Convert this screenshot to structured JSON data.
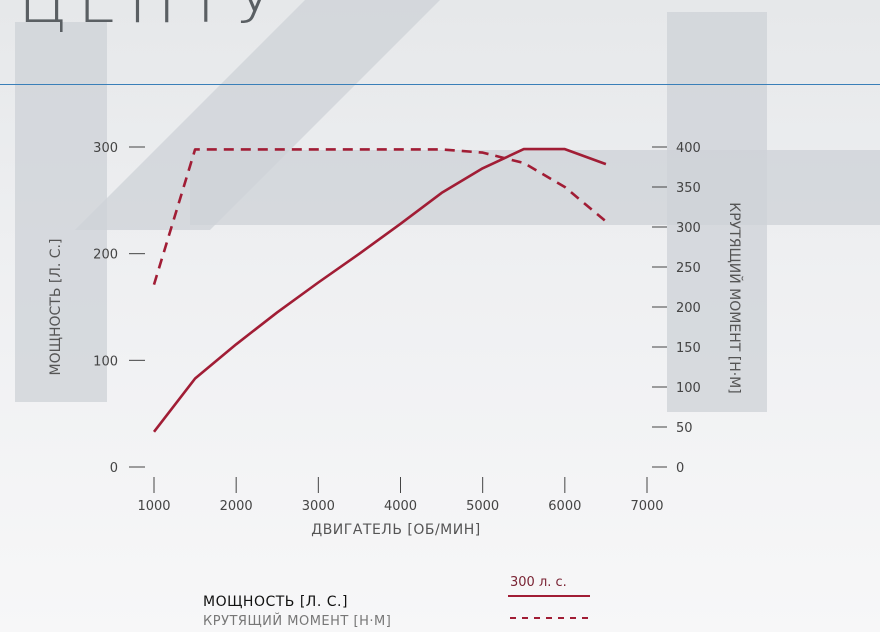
{
  "header_fragment": "ЦЕНТУ",
  "legend": {
    "power_label": "МОЩНОСТЬ [Л. С.]",
    "torque_label": "КРУТЯЩИЙ МОМЕНТ [Н·М]",
    "power_note": "300 л. с."
  },
  "colors": {
    "series": "#a11d35",
    "rule": "#3a7fb8",
    "watermark": "#cdd2d7"
  },
  "chart_data": {
    "type": "line",
    "xlabel": "ДВИГАТЕЛЬ [ОБ/МИН]",
    "ylabel": "МОЩНОСТЬ [Л. С.]",
    "y2label": "КРУТЯЩИЙ МОМЕНТ [Н·М]",
    "xlim": [
      1000,
      7000
    ],
    "ylim": [
      0,
      300
    ],
    "y2lim": [
      0,
      400
    ],
    "xticks": [
      1000,
      2000,
      3000,
      4000,
      5000,
      6000,
      7000
    ],
    "yticks": [
      0,
      100,
      200,
      300
    ],
    "y2ticks": [
      0,
      50,
      100,
      150,
      200,
      250,
      300,
      350,
      400
    ],
    "series": [
      {
        "name": "МОЩНОСТЬ [Л. С.]",
        "axis": "left",
        "style": "solid",
        "x": [
          1000,
          1500,
          2000,
          2500,
          3000,
          3500,
          4000,
          4500,
          5000,
          5500,
          6000,
          6500
        ],
        "y": [
          33,
          83,
          115,
          145,
          173,
          200,
          228,
          257,
          280,
          298,
          298,
          284
        ]
      },
      {
        "name": "КРУТЯЩИЙ МОМЕНТ [Н·М]",
        "axis": "right",
        "style": "dashed",
        "x": [
          1000,
          1500,
          2000,
          3000,
          4000,
          4500,
          5000,
          5500,
          6000,
          6500
        ],
        "y": [
          228,
          397,
          397,
          397,
          397,
          397,
          393,
          380,
          350,
          307
        ]
      }
    ]
  }
}
